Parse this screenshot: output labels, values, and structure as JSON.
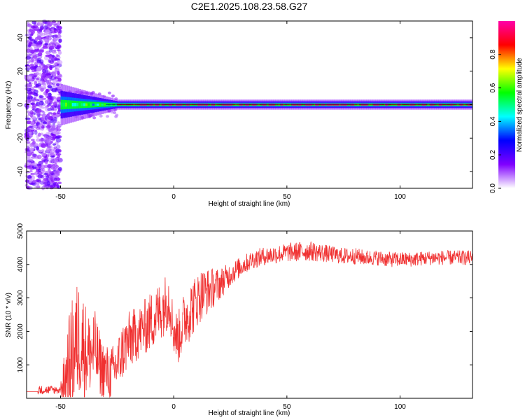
{
  "title": "C2E1.2025.108.23.58.G27",
  "chart_data": [
    {
      "type": "heatmap",
      "xlabel": "Height of straight line (km)",
      "ylabel": "Frequency (Hz)",
      "xlim": [
        -65,
        132
      ],
      "ylim": [
        -50,
        50
      ],
      "xticks": [
        -50,
        0,
        50,
        100
      ],
      "yticks": [
        -40,
        -20,
        0,
        20,
        40
      ],
      "colorbar": {
        "label": "Normalized spectral amplitude",
        "range": [
          0,
          1
        ],
        "ticks": [
          "0.0",
          "0.2",
          "0.4",
          "0.6",
          "0.8"
        ],
        "colors": [
          "#ffffff",
          "#8000ff",
          "#0000ff",
          "#00ffff",
          "#00ff00",
          "#ffff00",
          "#ff0000",
          "#ff00aa"
        ]
      },
      "features": [
        {
          "region": "noise",
          "x_range": [
            -65,
            -50
          ],
          "y_range": [
            -50,
            50
          ],
          "amplitude": [
            0.05,
            0.2
          ]
        },
        {
          "region": "carrier",
          "x_range": [
            -50,
            132
          ],
          "frequency": 0,
          "peak_amplitude": 0.95
        }
      ]
    },
    {
      "type": "line",
      "xlabel": "Height of straight line (km)",
      "ylabel": "SNR (10 * v/v)",
      "xlim": [
        -65,
        132
      ],
      "ylim": [
        0,
        5000
      ],
      "xticks": [
        -50,
        0,
        50,
        100
      ],
      "yticks": [
        1000,
        2000,
        3000,
        4000,
        5000
      ],
      "series": [
        {
          "color": "#f03030",
          "x": [
            -65,
            -55,
            -50,
            -46,
            -44,
            -42,
            -40,
            -38,
            -35,
            -32,
            -28,
            -25,
            -22,
            -20,
            -15,
            -10,
            -5,
            -2,
            0,
            2,
            5,
            8,
            10,
            12,
            15,
            20,
            25,
            30,
            35,
            40,
            45,
            50,
            55,
            60,
            65,
            70,
            75,
            80,
            85,
            90,
            95,
            100,
            105,
            110,
            115,
            120,
            125,
            132
          ],
          "y": [
            200,
            200,
            250,
            1000,
            1500,
            1800,
            1600,
            1300,
            1500,
            900,
            700,
            1000,
            1500,
            1700,
            2000,
            2300,
            2700,
            3000,
            2000,
            1800,
            2400,
            2700,
            2900,
            3100,
            3200,
            3400,
            3700,
            3950,
            4150,
            4250,
            4300,
            4350,
            4380,
            4400,
            4350,
            4300,
            4250,
            4250,
            4200,
            4200,
            4150,
            4150,
            4150,
            4180,
            4200,
            4200,
            4200,
            4200
          ],
          "noise_amplitude": [
            0,
            0,
            200,
            1600,
            1800,
            1800,
            1600,
            1300,
            1200,
            900,
            800,
            800,
            900,
            900,
            800,
            900,
            900,
            900,
            700,
            800,
            900,
            900,
            800,
            800,
            700,
            500,
            350,
            300,
            280,
            280,
            280,
            280,
            300,
            300,
            280,
            250,
            250,
            250,
            230,
            230,
            230,
            230,
            220,
            220,
            220,
            220,
            220,
            220
          ]
        }
      ]
    }
  ]
}
